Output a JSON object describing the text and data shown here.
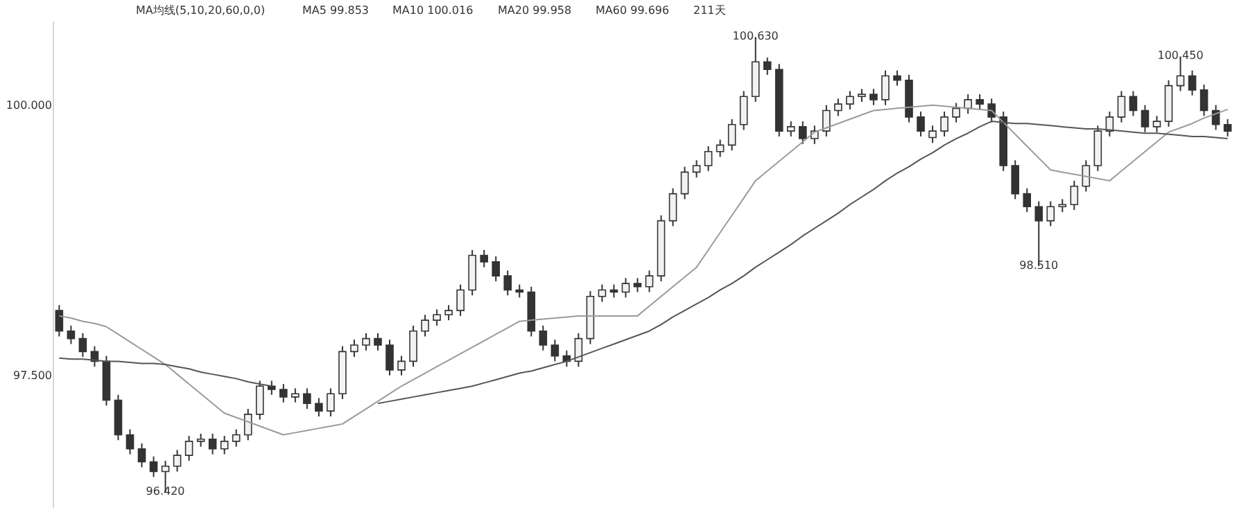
{
  "chart_data": {
    "type": "candlestick",
    "categories": [
      null,
      null,
      null,
      null,
      null,
      null,
      null,
      null,
      null,
      null,
      null,
      null,
      null,
      null,
      null,
      null,
      null,
      null,
      null,
      null,
      null,
      null,
      null,
      null,
      null,
      null,
      null,
      null,
      null,
      null,
      null,
      null,
      null,
      null,
      null,
      null,
      null,
      null,
      null,
      null,
      null,
      null,
      null,
      null,
      null,
      null,
      null,
      null,
      null,
      null,
      null,
      null,
      null,
      null,
      null,
      null,
      null,
      null,
      null,
      null,
      null,
      null,
      null,
      null,
      null,
      null,
      null,
      null,
      null,
      null,
      null,
      null,
      null,
      null,
      null,
      null,
      null,
      null,
      null,
      null,
      null,
      null,
      null,
      null,
      null,
      null,
      null,
      null,
      null,
      null,
      null,
      null,
      null,
      null,
      null,
      null,
      null,
      null,
      null,
      null
    ],
    "ohlc": [
      [
        98.1,
        98.15,
        97.86,
        97.91
      ],
      [
        97.91,
        97.96,
        97.79,
        97.84
      ],
      [
        97.84,
        97.89,
        97.67,
        97.72
      ],
      [
        97.72,
        97.77,
        97.58,
        97.63
      ],
      [
        97.63,
        97.68,
        97.22,
        97.27
      ],
      [
        97.27,
        97.32,
        96.9,
        96.95
      ],
      [
        96.95,
        97.0,
        96.77,
        96.82
      ],
      [
        96.82,
        96.87,
        96.65,
        96.7
      ],
      [
        96.7,
        96.75,
        96.56,
        96.61
      ],
      [
        96.61,
        96.71,
        96.42,
        96.66
      ],
      [
        96.66,
        96.81,
        96.61,
        96.76
      ],
      [
        96.76,
        96.94,
        96.71,
        96.89
      ],
      [
        96.89,
        96.96,
        96.84,
        96.91
      ],
      [
        96.91,
        96.96,
        96.77,
        96.82
      ],
      [
        96.82,
        96.94,
        96.77,
        96.89
      ],
      [
        96.89,
        97.0,
        96.84,
        96.95
      ],
      [
        96.95,
        97.19,
        96.9,
        97.14
      ],
      [
        97.14,
        97.45,
        97.09,
        97.4
      ],
      [
        97.4,
        97.45,
        97.32,
        97.37
      ],
      [
        97.37,
        97.42,
        97.25,
        97.3
      ],
      [
        97.3,
        97.38,
        97.25,
        97.33
      ],
      [
        97.33,
        97.38,
        97.19,
        97.24
      ],
      [
        97.24,
        97.29,
        97.12,
        97.17
      ],
      [
        97.17,
        97.38,
        97.12,
        97.33
      ],
      [
        97.33,
        97.77,
        97.28,
        97.72
      ],
      [
        97.72,
        97.83,
        97.67,
        97.78
      ],
      [
        97.78,
        97.89,
        97.73,
        97.84
      ],
      [
        97.84,
        97.89,
        97.73,
        97.78
      ],
      [
        97.78,
        97.83,
        97.5,
        97.55
      ],
      [
        97.55,
        97.68,
        97.5,
        97.63
      ],
      [
        97.63,
        97.96,
        97.58,
        97.91
      ],
      [
        97.91,
        98.06,
        97.86,
        98.01
      ],
      [
        98.01,
        98.11,
        97.96,
        98.06
      ],
      [
        98.06,
        98.15,
        98.01,
        98.1
      ],
      [
        98.1,
        98.34,
        98.05,
        98.29
      ],
      [
        98.29,
        98.66,
        98.24,
        98.61
      ],
      [
        98.61,
        98.66,
        98.5,
        98.55
      ],
      [
        98.55,
        98.6,
        98.37,
        98.42
      ],
      [
        98.42,
        98.47,
        98.24,
        98.29
      ],
      [
        98.29,
        98.34,
        98.22,
        98.27
      ],
      [
        98.27,
        98.32,
        97.86,
        97.91
      ],
      [
        97.91,
        97.96,
        97.73,
        97.78
      ],
      [
        97.78,
        97.83,
        97.63,
        97.68
      ],
      [
        97.68,
        97.73,
        97.58,
        97.63
      ],
      [
        97.63,
        97.89,
        97.58,
        97.84
      ],
      [
        97.84,
        98.28,
        97.79,
        98.23
      ],
      [
        98.23,
        98.34,
        98.18,
        98.29
      ],
      [
        98.29,
        98.34,
        98.22,
        98.27
      ],
      [
        98.27,
        98.4,
        98.22,
        98.35
      ],
      [
        98.35,
        98.4,
        98.27,
        98.32
      ],
      [
        98.32,
        98.47,
        98.27,
        98.42
      ],
      [
        98.42,
        98.98,
        98.37,
        98.93
      ],
      [
        98.93,
        99.23,
        98.88,
        99.18
      ],
      [
        99.18,
        99.43,
        99.13,
        99.38
      ],
      [
        99.38,
        99.49,
        99.33,
        99.44
      ],
      [
        99.44,
        99.62,
        99.39,
        99.57
      ],
      [
        99.57,
        99.68,
        99.52,
        99.63
      ],
      [
        99.63,
        99.87,
        99.58,
        99.82
      ],
      [
        99.82,
        100.13,
        99.77,
        100.08
      ],
      [
        100.08,
        100.63,
        100.03,
        100.4
      ],
      [
        100.4,
        100.44,
        100.28,
        100.33
      ],
      [
        100.33,
        100.38,
        99.71,
        99.76
      ],
      [
        99.76,
        99.85,
        99.71,
        99.8
      ],
      [
        99.8,
        99.85,
        99.64,
        99.69
      ],
      [
        99.69,
        99.81,
        99.64,
        99.76
      ],
      [
        99.76,
        100.0,
        99.71,
        99.95
      ],
      [
        99.95,
        100.06,
        99.9,
        100.01
      ],
      [
        100.01,
        100.13,
        99.96,
        100.08
      ],
      [
        100.08,
        100.15,
        100.03,
        100.1
      ],
      [
        100.1,
        100.15,
        100.0,
        100.05
      ],
      [
        100.05,
        100.32,
        100.0,
        100.27
      ],
      [
        100.27,
        100.32,
        100.18,
        100.23
      ],
      [
        100.23,
        100.28,
        99.84,
        99.89
      ],
      [
        99.89,
        99.94,
        99.71,
        99.76
      ],
      [
        99.7,
        99.81,
        99.65,
        99.76
      ],
      [
        99.76,
        99.94,
        99.71,
        99.89
      ],
      [
        99.89,
        100.02,
        99.84,
        99.97
      ],
      [
        99.97,
        100.1,
        99.92,
        100.05
      ],
      [
        100.05,
        100.1,
        99.96,
        100.01
      ],
      [
        100.01,
        100.06,
        99.84,
        99.89
      ],
      [
        99.89,
        99.94,
        99.39,
        99.44
      ],
      [
        99.44,
        99.49,
        99.13,
        99.18
      ],
      [
        99.18,
        99.23,
        99.01,
        99.06
      ],
      [
        99.06,
        99.11,
        98.51,
        98.93
      ],
      [
        98.93,
        99.11,
        98.88,
        99.06
      ],
      [
        99.06,
        99.13,
        99.01,
        99.08
      ],
      [
        99.08,
        99.3,
        99.03,
        99.25
      ],
      [
        99.25,
        99.49,
        99.2,
        99.44
      ],
      [
        99.44,
        99.81,
        99.39,
        99.76
      ],
      [
        99.76,
        99.94,
        99.71,
        99.89
      ],
      [
        99.89,
        100.13,
        99.84,
        100.08
      ],
      [
        100.08,
        100.13,
        99.9,
        99.95
      ],
      [
        99.95,
        100.0,
        99.75,
        99.8
      ],
      [
        99.8,
        99.9,
        99.75,
        99.85
      ],
      [
        99.85,
        100.23,
        99.8,
        100.18
      ],
      [
        100.18,
        100.45,
        100.13,
        100.27
      ],
      [
        100.27,
        100.32,
        100.09,
        100.14
      ],
      [
        100.14,
        100.19,
        99.9,
        99.95
      ],
      [
        99.95,
        100.0,
        99.77,
        99.82
      ],
      [
        99.82,
        99.87,
        99.71,
        99.76
      ]
    ],
    "series": [
      {
        "type": "line",
        "color": "#9a9a9a",
        "values": [
          98.05,
          98.03,
          98.0,
          97.98,
          97.95,
          97.88,
          97.81,
          97.74,
          97.67,
          97.6,
          97.51,
          97.42,
          97.33,
          97.24,
          97.15,
          97.11,
          97.07,
          97.03,
          96.99,
          96.95,
          96.97,
          96.99,
          97.01,
          97.03,
          97.05,
          97.12,
          97.19,
          97.26,
          97.33,
          97.4,
          97.46,
          97.52,
          97.58,
          97.64,
          97.7,
          97.76,
          97.82,
          97.88,
          97.94,
          98.0,
          98.01,
          98.02,
          98.03,
          98.04,
          98.05,
          98.05,
          98.05,
          98.05,
          98.05,
          98.05,
          98.14,
          98.23,
          98.32,
          98.41,
          98.5,
          98.66,
          98.82,
          98.98,
          99.14,
          99.3,
          99.39,
          99.48,
          99.57,
          99.66,
          99.75,
          99.79,
          99.83,
          99.87,
          99.91,
          99.95,
          99.96,
          99.97,
          99.98,
          99.99,
          100.0,
          99.99,
          99.98,
          99.97,
          99.96,
          99.95,
          99.84,
          99.73,
          99.62,
          99.51,
          99.4,
          99.38,
          99.36,
          99.34,
          99.32,
          99.3,
          99.39,
          99.48,
          99.57,
          99.66,
          99.75,
          99.79,
          99.83,
          99.88,
          99.92,
          99.96
        ]
      },
      {
        "type": "line",
        "color": "#555555",
        "values": [
          97.66,
          97.65,
          97.65,
          97.64,
          97.63,
          97.63,
          97.62,
          97.61,
          97.61,
          97.6,
          97.58,
          97.56,
          97.53,
          97.51,
          97.49,
          97.47,
          97.44,
          97.42,
          97.4,
          null,
          null,
          null,
          null,
          null,
          null,
          null,
          null,
          97.24,
          97.26,
          97.28,
          97.3,
          97.32,
          97.34,
          97.36,
          97.38,
          97.4,
          97.43,
          97.46,
          97.49,
          97.52,
          97.54,
          97.57,
          97.6,
          97.63,
          97.67,
          97.71,
          97.75,
          97.79,
          97.83,
          97.87,
          97.91,
          97.97,
          98.04,
          98.1,
          98.16,
          98.22,
          98.29,
          98.35,
          98.42,
          98.5,
          98.57,
          98.64,
          98.71,
          98.79,
          98.86,
          98.93,
          99.0,
          99.08,
          99.15,
          99.22,
          99.3,
          99.37,
          99.43,
          99.5,
          99.56,
          99.63,
          99.69,
          99.74,
          99.8,
          99.85,
          99.84,
          99.83,
          99.83,
          99.82,
          99.81,
          99.8,
          99.79,
          99.78,
          99.78,
          99.77,
          99.76,
          99.75,
          99.74,
          99.74,
          99.73,
          99.72,
          99.71,
          99.71,
          99.7,
          99.69
        ]
      }
    ],
    "ylim": [
      96.28,
      100.78
    ],
    "yticks": [
      {
        "value": 97.5,
        "label": "97.500"
      },
      {
        "value": 100,
        "label": "100.000"
      }
    ],
    "tick_labels": "y",
    "annotations": [
      "MA均线(5,10,20,60,0,0)",
      "MA5 99.853",
      "MA10 100.016",
      "MA20 99.958",
      "MA60 99.696",
      "211天",
      {
        "text": "100.630",
        "y": 100.63
      },
      {
        "text": "96.420",
        "y": 96.42
      },
      {
        "text": "98.510",
        "y": 98.51
      },
      {
        "text": "100.450",
        "y": 100.45
      }
    ]
  }
}
